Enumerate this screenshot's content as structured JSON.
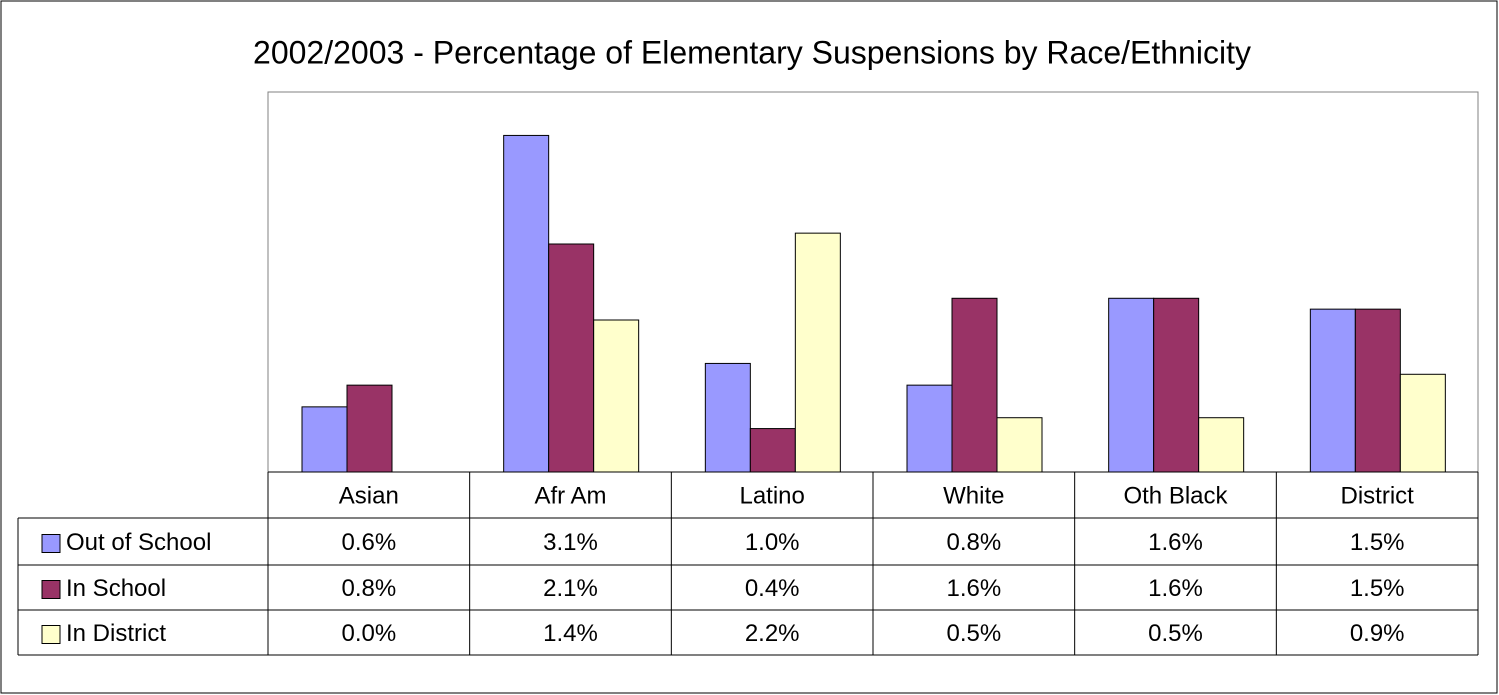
{
  "chart_data": {
    "type": "bar",
    "title": "2002/2003 - Percentage of Elementary Suspensions by Race/Ethnicity",
    "categories": [
      "Asian",
      "Afr Am",
      "Latino",
      "White",
      "Oth Black",
      "District"
    ],
    "series": [
      {
        "name": "Out of School",
        "color": "#9999ff",
        "values": [
          0.6,
          3.1,
          1.0,
          0.8,
          1.6,
          1.5
        ],
        "value_labels": [
          "0.6%",
          "3.1%",
          "1.0%",
          "0.8%",
          "1.6%",
          "1.5%"
        ]
      },
      {
        "name": "In School",
        "color": "#993366",
        "values": [
          0.8,
          2.1,
          0.4,
          1.6,
          1.6,
          1.5
        ],
        "value_labels": [
          "0.8%",
          "2.1%",
          "0.4%",
          "1.6%",
          "1.6%",
          "1.5%"
        ]
      },
      {
        "name": "In District",
        "color": "#ffffcc",
        "values": [
          0.0,
          1.4,
          2.2,
          0.5,
          0.5,
          0.9
        ],
        "value_labels": [
          "0.0%",
          "1.4%",
          "2.2%",
          "0.5%",
          "0.5%",
          "0.9%"
        ]
      }
    ],
    "ylim": [
      0,
      3.5
    ]
  }
}
